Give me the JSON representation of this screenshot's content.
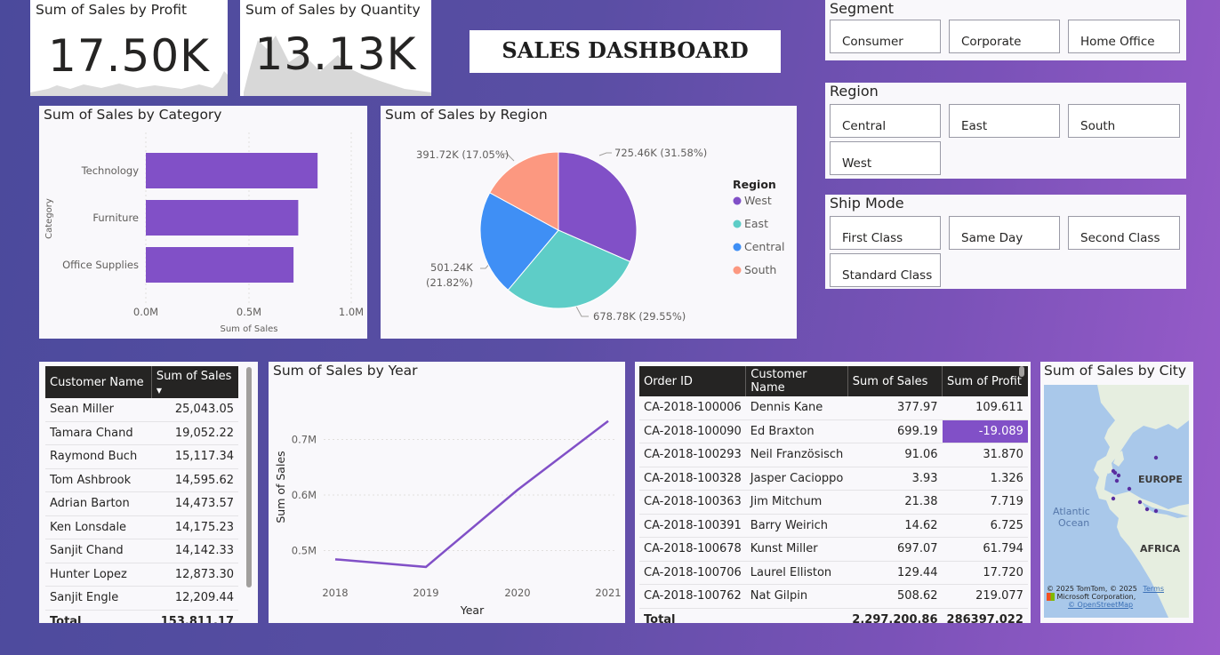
{
  "kpi_profit": {
    "title": "Sum of Sales by Profit",
    "value": "17.50K"
  },
  "kpi_quantity": {
    "title": "Sum of Sales by Quantity",
    "value": "13.13K"
  },
  "dashboard_title": "SALES DASHBOARD",
  "segment": {
    "title": "Segment",
    "options": [
      "Consumer",
      "Corporate",
      "Home Office"
    ]
  },
  "region_slicer": {
    "title": "Region",
    "options": [
      "Central",
      "East",
      "South",
      "West"
    ]
  },
  "ship_mode": {
    "title": "Ship Mode",
    "options": [
      "First Class",
      "Same Day",
      "Second Class",
      "Standard Class"
    ]
  },
  "category_chart": {
    "title": "Sum of Sales by Category",
    "ylabel": "Category",
    "xlabel": "Sum of Sales",
    "ticks": [
      "0.0M",
      "0.5M",
      "1.0M"
    ],
    "color": "#8150c7"
  },
  "region_chart": {
    "title": "Sum of Sales by Region",
    "legend_title": "Region",
    "labels": {
      "west": "725.46K (31.58%)",
      "east": "678.78K (29.55%)",
      "central_a": "501.24K",
      "central_b": "(21.82%)",
      "south": "391.72K (17.05%)"
    }
  },
  "year_chart": {
    "title": "Sum of Sales by Year",
    "ylabel": "Sum of Sales",
    "xlabel": "Year"
  },
  "customer_table": {
    "headers": [
      "Customer Name",
      "Sum of Sales"
    ],
    "rows": [
      [
        "Sean Miller",
        "25,043.05"
      ],
      [
        "Tamara Chand",
        "19,052.22"
      ],
      [
        "Raymond Buch",
        "15,117.34"
      ],
      [
        "Tom Ashbrook",
        "14,595.62"
      ],
      [
        "Adrian Barton",
        "14,473.57"
      ],
      [
        "Ken Lonsdale",
        "14,175.23"
      ],
      [
        "Sanjit Chand",
        "14,142.33"
      ],
      [
        "Hunter Lopez",
        "12,873.30"
      ],
      [
        "Sanjit Engle",
        "12,209.44"
      ]
    ],
    "total_label": "Total",
    "total_value": "153,811.17"
  },
  "order_table": {
    "headers": [
      "Order ID",
      "Customer Name",
      "Sum of Sales",
      "Sum of Profit"
    ],
    "rows": [
      [
        "CA-2018-100006",
        "Dennis Kane",
        "377.97",
        "109.611"
      ],
      [
        "CA-2018-100090",
        "Ed Braxton",
        "699.19",
        "-19.089"
      ],
      [
        "CA-2018-100293",
        "Neil Französisch",
        "91.06",
        "31.870"
      ],
      [
        "CA-2018-100328",
        "Jasper Cacioppo",
        "3.93",
        "1.326"
      ],
      [
        "CA-2018-100363",
        "Jim Mitchum",
        "21.38",
        "7.719"
      ],
      [
        "CA-2018-100391",
        "Barry Weirich",
        "14.62",
        "6.725"
      ],
      [
        "CA-2018-100678",
        "Kunst Miller",
        "697.07",
        "61.794"
      ],
      [
        "CA-2018-100706",
        "Laurel Elliston",
        "129.44",
        "17.720"
      ],
      [
        "CA-2018-100762",
        "Nat Gilpin",
        "508.62",
        "219.077"
      ]
    ],
    "total_label": "Total",
    "total_sales": "2,297,200.86",
    "total_profit": "286397.022"
  },
  "city_map": {
    "title": "Sum of Sales by City",
    "labels": {
      "europe": "EUROPE",
      "africa": "AFRICA",
      "atlantic_a": "Atlantic",
      "atlantic_b": "Ocean"
    },
    "attribution": {
      "line1": "© 2025 TomTom, © 2025",
      "terms": "Terms",
      "line2": "Microsoft Corporation,",
      "line3": "© OpenStreetMap"
    }
  },
  "chart_data": [
    {
      "type": "bar",
      "title": "Sum of Sales by Category",
      "categories": [
        "Technology",
        "Furniture",
        "Office Supplies"
      ],
      "values": [
        836154,
        741999,
        719047
      ],
      "xlabel": "Sum of Sales",
      "ylabel": "Category",
      "xlim": [
        0,
        1100000
      ]
    },
    {
      "type": "pie",
      "title": "Sum of Sales by Region",
      "categories": [
        "West",
        "East",
        "Central",
        "South"
      ],
      "values": [
        725.46,
        678.78,
        501.24,
        391.72
      ],
      "percentages": [
        31.58,
        29.55,
        21.82,
        17.05
      ],
      "colors": [
        "#8150c7",
        "#5ecdc7",
        "#3f8ff5",
        "#fc9880"
      ]
    },
    {
      "type": "line",
      "title": "Sum of Sales by Year",
      "x": [
        "2018",
        "2019",
        "2020",
        "2021"
      ],
      "values": [
        484247,
        470533,
        609206,
        733215
      ],
      "ticks": [
        0.5,
        0.6,
        0.7
      ],
      "tick_labels": [
        "0.5M",
        "0.6M",
        "0.7M"
      ],
      "ylim": [
        0.44,
        0.76
      ],
      "xlabel": "Year",
      "ylabel": "Sum of Sales"
    }
  ]
}
